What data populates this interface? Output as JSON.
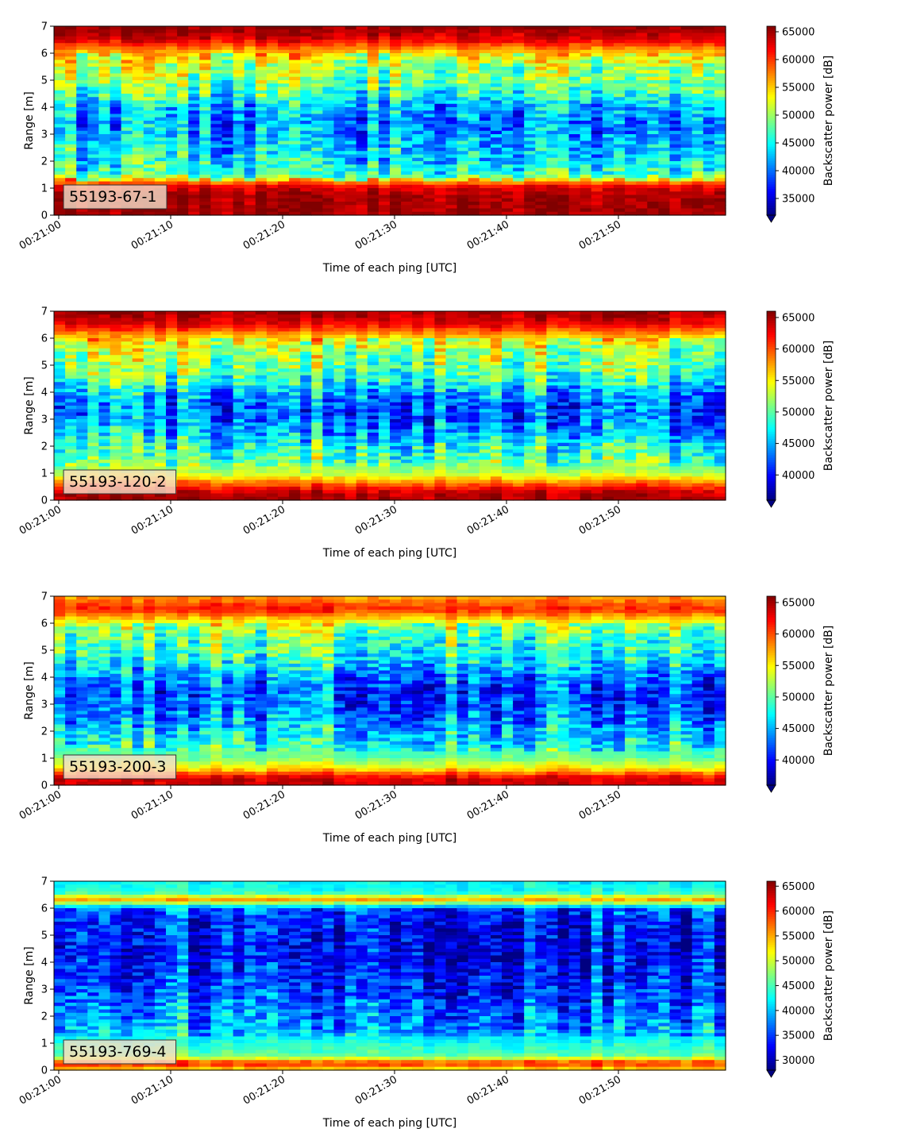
{
  "chart_data": [
    {
      "type": "heatmap",
      "panel_label": "55193-67-1",
      "xlabel": "Time of each ping [UTC]",
      "ylabel": "Range [m]",
      "x_ticks": [
        "00:21:00",
        "00:21:10",
        "00:21:20",
        "00:21:30",
        "00:21:40",
        "00:21:50"
      ],
      "xlim": [
        "00:21:00",
        "00:21:59"
      ],
      "y_ticks": [
        0,
        1,
        2,
        3,
        4,
        5,
        6,
        7
      ],
      "ylim": [
        0,
        7
      ],
      "colorbar": {
        "label": "Backscatter power [dB]",
        "ticks": [
          35000,
          40000,
          45000,
          50000,
          55000,
          60000,
          65000
        ],
        "range": [
          32000,
          66000
        ],
        "colormap": "jet",
        "extend": "min"
      },
      "profile_by_range": [
        {
          "range_m": 0.25,
          "value": 65000
        },
        {
          "range_m": 0.75,
          "value": 65000
        },
        {
          "range_m": 1.1,
          "value": 62000
        },
        {
          "range_m": 1.5,
          "value": 47000
        },
        {
          "range_m": 2.0,
          "value": 45000
        },
        {
          "range_m": 2.5,
          "value": 44000
        },
        {
          "range_m": 3.0,
          "value": 42000
        },
        {
          "range_m": 3.5,
          "value": 41500
        },
        {
          "range_m": 4.0,
          "value": 43000
        },
        {
          "range_m": 4.5,
          "value": 47000
        },
        {
          "range_m": 5.0,
          "value": 50000
        },
        {
          "range_m": 5.5,
          "value": 51000
        },
        {
          "range_m": 6.0,
          "value": 55000
        },
        {
          "range_m": 6.5,
          "value": 63000
        },
        {
          "range_m": 7.0,
          "value": 66000
        }
      ]
    },
    {
      "type": "heatmap",
      "panel_label": "55193-120-2",
      "xlabel": "Time of each ping [UTC]",
      "ylabel": "Range [m]",
      "x_ticks": [
        "00:21:00",
        "00:21:10",
        "00:21:20",
        "00:21:30",
        "00:21:40",
        "00:21:50"
      ],
      "xlim": [
        "00:21:00",
        "00:21:59"
      ],
      "y_ticks": [
        0,
        1,
        2,
        3,
        4,
        5,
        6,
        7
      ],
      "ylim": [
        0,
        7
      ],
      "colorbar": {
        "label": "Backscatter power [dB]",
        "ticks": [
          40000,
          45000,
          50000,
          55000,
          60000,
          65000
        ],
        "range": [
          36000,
          66000
        ],
        "colormap": "jet",
        "extend": "min"
      },
      "profile_by_range": [
        {
          "range_m": 0.25,
          "value": 65000
        },
        {
          "range_m": 0.6,
          "value": 60000
        },
        {
          "range_m": 1.0,
          "value": 53000
        },
        {
          "range_m": 1.5,
          "value": 51000
        },
        {
          "range_m": 2.0,
          "value": 49000
        },
        {
          "range_m": 2.5,
          "value": 46000
        },
        {
          "range_m": 3.0,
          "value": 44000
        },
        {
          "range_m": 3.5,
          "value": 43500
        },
        {
          "range_m": 4.0,
          "value": 46000
        },
        {
          "range_m": 4.5,
          "value": 50000
        },
        {
          "range_m": 5.0,
          "value": 52000
        },
        {
          "range_m": 5.5,
          "value": 53000
        },
        {
          "range_m": 6.0,
          "value": 56000
        },
        {
          "range_m": 6.5,
          "value": 63000
        },
        {
          "range_m": 7.0,
          "value": 65500
        }
      ]
    },
    {
      "type": "heatmap",
      "panel_label": "55193-200-3",
      "xlabel": "Time of each ping [UTC]",
      "ylabel": "Range [m]",
      "x_ticks": [
        "00:21:00",
        "00:21:10",
        "00:21:20",
        "00:21:30",
        "00:21:40",
        "00:21:50"
      ],
      "xlim": [
        "00:21:00",
        "00:21:59"
      ],
      "y_ticks": [
        0,
        1,
        2,
        3,
        4,
        5,
        6,
        7
      ],
      "ylim": [
        0,
        7
      ],
      "colorbar": {
        "label": "Backscatter power [dB]",
        "ticks": [
          40000,
          45000,
          50000,
          55000,
          60000,
          65000
        ],
        "range": [
          36000,
          66000
        ],
        "colormap": "jet",
        "extend": "min"
      },
      "profile_by_range": [
        {
          "range_m": 0.25,
          "value": 64000
        },
        {
          "range_m": 0.6,
          "value": 56000
        },
        {
          "range_m": 1.0,
          "value": 51000
        },
        {
          "range_m": 1.5,
          "value": 49000
        },
        {
          "range_m": 2.0,
          "value": 47000
        },
        {
          "range_m": 2.5,
          "value": 45000
        },
        {
          "range_m": 3.0,
          "value": 43500
        },
        {
          "range_m": 3.5,
          "value": 43000
        },
        {
          "range_m": 4.0,
          "value": 45000
        },
        {
          "range_m": 4.5,
          "value": 48000
        },
        {
          "range_m": 5.0,
          "value": 50000
        },
        {
          "range_m": 5.5,
          "value": 51000
        },
        {
          "range_m": 6.0,
          "value": 54000
        },
        {
          "range_m": 6.5,
          "value": 62000
        },
        {
          "range_m": 7.0,
          "value": 58000
        }
      ]
    },
    {
      "type": "heatmap",
      "panel_label": "55193-769-4",
      "xlabel": "Time of each ping [UTC]",
      "ylabel": "Range [m]",
      "x_ticks": [
        "00:21:00",
        "00:21:10",
        "00:21:20",
        "00:21:30",
        "00:21:40",
        "00:21:50"
      ],
      "xlim": [
        "00:21:00",
        "00:21:59"
      ],
      "y_ticks": [
        0,
        1,
        2,
        3,
        4,
        5,
        6,
        7
      ],
      "ylim": [
        0,
        7
      ],
      "colorbar": {
        "label": "Backscatter power [dB]",
        "ticks": [
          30000,
          35000,
          40000,
          45000,
          50000,
          55000,
          60000,
          65000
        ],
        "range": [
          28000,
          66000
        ],
        "colormap": "jet",
        "extend": "min"
      },
      "profile_by_range": [
        {
          "range_m": 0.1,
          "value": 55000
        },
        {
          "range_m": 0.25,
          "value": 62000
        },
        {
          "range_m": 0.5,
          "value": 47000
        },
        {
          "range_m": 1.0,
          "value": 44000
        },
        {
          "range_m": 1.5,
          "value": 41000
        },
        {
          "range_m": 2.0,
          "value": 39500
        },
        {
          "range_m": 2.5,
          "value": 38500
        },
        {
          "range_m": 3.0,
          "value": 37000
        },
        {
          "range_m": 3.5,
          "value": 36000
        },
        {
          "range_m": 4.0,
          "value": 35000
        },
        {
          "range_m": 4.5,
          "value": 35000
        },
        {
          "range_m": 5.0,
          "value": 35000
        },
        {
          "range_m": 5.5,
          "value": 35500
        },
        {
          "range_m": 6.0,
          "value": 38000
        },
        {
          "range_m": 6.3,
          "value": 56000
        },
        {
          "range_m": 6.6,
          "value": 44000
        },
        {
          "range_m": 7.0,
          "value": 43000
        }
      ]
    }
  ]
}
